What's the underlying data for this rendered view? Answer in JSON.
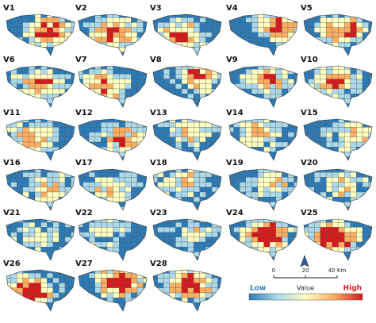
{
  "panels": [
    "V1",
    "V2",
    "V3",
    "V4",
    "V5",
    "V6",
    "V7",
    "V8",
    "V9",
    "V10",
    "V11",
    "V12",
    "V13",
    "V14",
    "V15",
    "V16",
    "V17",
    "V18",
    "V19",
    "V20",
    "V21",
    "V22",
    "V23",
    "V24",
    "V25",
    "V26",
    "V27",
    "V28"
  ],
  "legend": {
    "low": "Low",
    "title": "Value",
    "high": "High"
  },
  "scale_bar": {
    "labels": [
      "0",
      "20",
      "40 Km"
    ]
  }
}
